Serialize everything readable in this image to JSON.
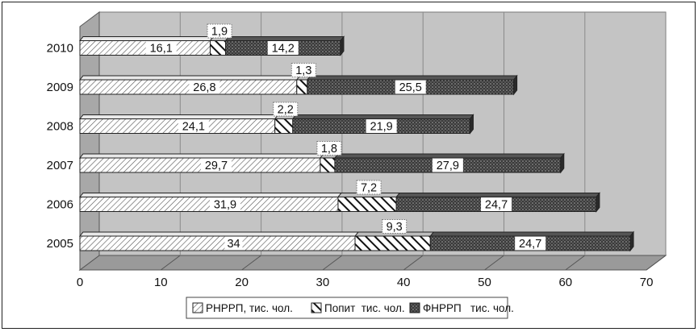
{
  "chart_data": {
    "type": "bar",
    "orientation": "horizontal",
    "stacked": true,
    "categories": [
      "2005",
      "2006",
      "2007",
      "2008",
      "2009",
      "2010"
    ],
    "series": [
      {
        "name": "РНРРП, тис. чол.",
        "values": [
          34,
          31.9,
          29.7,
          24.1,
          26.8,
          16.1
        ],
        "labels": [
          "34",
          "31,9",
          "29,7",
          "24,1",
          "26,8",
          "16,1"
        ]
      },
      {
        "name": "Попит  тис. чол.",
        "values": [
          9.3,
          7.2,
          1.8,
          2.2,
          1.3,
          1.9
        ],
        "labels": [
          "9,3",
          "7,2",
          "1,8",
          "2,2",
          "1,3",
          "1,9"
        ]
      },
      {
        "name": "ФНРРП   тис. чол.",
        "values": [
          24.7,
          24.7,
          27.9,
          21.9,
          25.5,
          14.2
        ],
        "labels": [
          "24,7",
          "24,7",
          "27,9",
          "21,9",
          "25,5",
          "14,2"
        ]
      }
    ],
    "xlim": [
      0,
      70
    ],
    "xticks": [
      "0",
      "10",
      "20",
      "30",
      "40",
      "50",
      "60",
      "70"
    ],
    "grid": true,
    "legend_position": "bottom",
    "colors": {
      "plot_wall": "#c4c4c4",
      "grid": "#8a8a8a",
      "bar_edge": "#222222"
    }
  }
}
